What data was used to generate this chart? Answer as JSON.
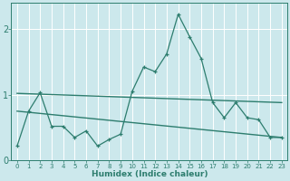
{
  "xlabel": "Humidex (Indice chaleur)",
  "bg_color": "#cce8ec",
  "line_color": "#2d7d6e",
  "grid_color": "#b0d8de",
  "jagged_x": [
    0,
    1,
    2,
    3,
    4,
    5,
    6,
    7,
    8,
    9,
    10,
    11,
    12,
    13,
    14,
    15,
    16,
    17,
    18,
    19,
    20,
    21,
    22,
    23
  ],
  "jagged_y": [
    0.22,
    0.75,
    1.03,
    0.52,
    0.52,
    0.35,
    0.45,
    0.22,
    0.32,
    0.4,
    1.05,
    1.42,
    1.35,
    1.62,
    2.22,
    1.88,
    1.55,
    0.88,
    0.65,
    0.88,
    0.65,
    0.62,
    0.35,
    0.35
  ],
  "flat_line_x": [
    0,
    23
  ],
  "flat_line_y": [
    1.02,
    0.88
  ],
  "lower_line_x": [
    0,
    23
  ],
  "lower_line_y": [
    0.75,
    0.35
  ],
  "ylim": [
    0,
    2.4
  ],
  "xlim": [
    -0.5,
    23.5
  ],
  "yticks": [
    0,
    1,
    2
  ],
  "xticks": [
    0,
    1,
    2,
    3,
    4,
    5,
    6,
    7,
    8,
    9,
    10,
    11,
    12,
    13,
    14,
    15,
    16,
    17,
    18,
    19,
    20,
    21,
    22,
    23
  ]
}
